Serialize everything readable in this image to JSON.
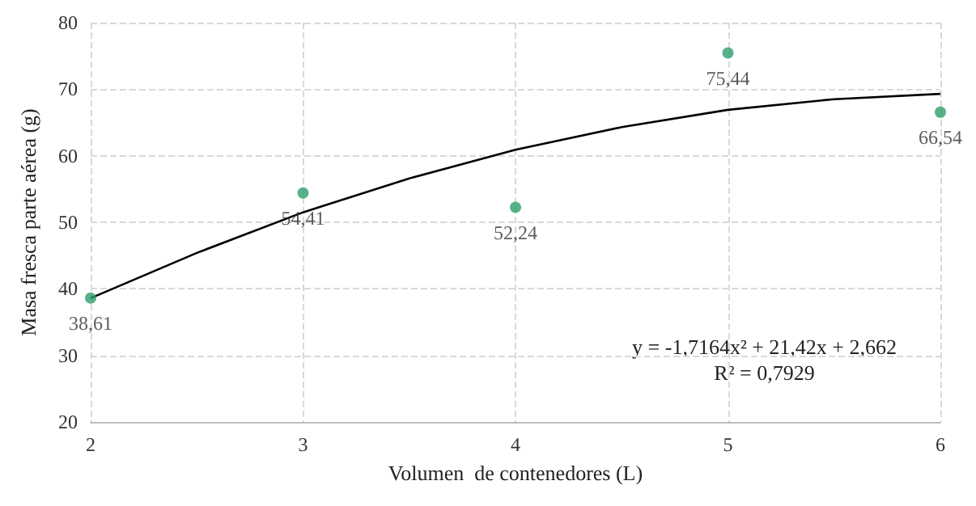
{
  "chart_data": {
    "type": "scatter",
    "xlabel": "Volumen  de contenedores (L)",
    "ylabel": "Masa fresca parte aérea (g)",
    "x": [
      2,
      3,
      4,
      5,
      6
    ],
    "series": [
      {
        "color": "#2e9e6b",
        "marker": "circle",
        "values": [
          38.61,
          54.41,
          52.24,
          75.44,
          66.54
        ],
        "value_labels": [
          "38,61",
          "54,41",
          "52,24",
          "75,44",
          "66,54"
        ]
      },
      {
        "type": "line",
        "color": "#000000",
        "marker": "none",
        "line_style": "solid",
        "x": [
          2,
          2.5,
          3,
          3.5,
          4,
          4.5,
          5,
          5.5,
          6
        ],
        "values": [
          38.6,
          45.4,
          51.5,
          56.6,
          60.9,
          64.3,
          66.9,
          68.5,
          69.3
        ]
      }
    ],
    "annotations": [
      "y = -1,7164x² + 21,42x + 2,662",
      "R² = 0,7929"
    ],
    "xlim": [
      2,
      6
    ],
    "xticks": [
      2,
      3,
      4,
      5,
      6
    ],
    "ylim": [
      20,
      80
    ],
    "yticks": [
      20,
      30,
      40,
      50,
      60,
      70,
      80
    ],
    "grid": true
  }
}
